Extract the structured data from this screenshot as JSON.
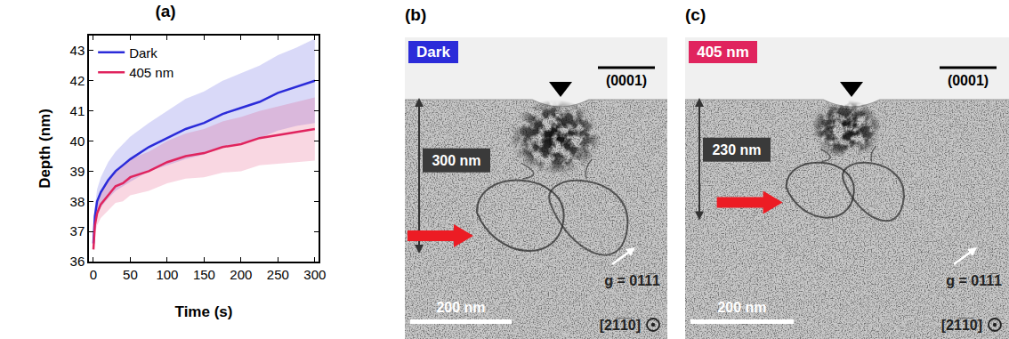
{
  "chart_data": {
    "type": "line",
    "title": "(a)",
    "x_label": "Time (s)",
    "y_label": "Depth (nm)",
    "x": [
      0,
      2,
      5,
      10,
      20,
      30,
      40,
      50,
      75,
      100,
      125,
      150,
      175,
      200,
      225,
      250,
      275,
      300
    ],
    "series": [
      {
        "name": "Dark",
        "color": "#2b2bd9",
        "values": [
          36.6,
          37.5,
          38.0,
          38.3,
          38.7,
          39.0,
          39.2,
          39.4,
          39.8,
          40.1,
          40.4,
          40.6,
          40.9,
          41.1,
          41.3,
          41.6,
          41.8,
          42.0
        ],
        "error": [
          0.1,
          0.3,
          0.4,
          0.5,
          0.6,
          0.65,
          0.7,
          0.75,
          0.8,
          0.9,
          1.0,
          1.05,
          1.1,
          1.15,
          1.2,
          1.25,
          1.3,
          1.4
        ]
      },
      {
        "name": "405 nm",
        "color": "#e0245e",
        "values": [
          36.4,
          37.2,
          37.6,
          37.9,
          38.2,
          38.5,
          38.6,
          38.8,
          39.0,
          39.3,
          39.5,
          39.6,
          39.8,
          39.9,
          40.1,
          40.2,
          40.3,
          40.4
        ],
        "error": [
          0.1,
          0.3,
          0.4,
          0.45,
          0.5,
          0.55,
          0.6,
          0.6,
          0.65,
          0.7,
          0.75,
          0.8,
          0.85,
          0.9,
          0.9,
          0.95,
          1.0,
          1.05
        ]
      }
    ],
    "xlim": [
      -6,
      305
    ],
    "ylim": [
      36,
      43.5
    ],
    "xticks": [
      0,
      50,
      100,
      150,
      200,
      250,
      300
    ],
    "yticks": [
      36,
      37,
      38,
      39,
      40,
      41,
      42,
      43
    ],
    "grid": false,
    "legend": "upper left"
  },
  "micrographs": [
    {
      "label": "(b)",
      "condition": "Dark",
      "condition_color": "#2b2bd9",
      "plane": "(0001)",
      "depth": 300,
      "depth_label": "300 nm",
      "scale_bar": 200,
      "scale_bar_label": "200 nm",
      "g_vector": "g = 011̅1",
      "zone_axis": "[21̅1̅0]"
    },
    {
      "label": "(c)",
      "condition": "405 nm",
      "condition_color": "#e0245e",
      "plane": "(0001)",
      "depth": 230,
      "depth_label": "230 nm",
      "scale_bar": 200,
      "scale_bar_label": "200 nm",
      "g_vector": "g = 011̅1",
      "zone_axis": "[21̅1̅0]"
    }
  ]
}
